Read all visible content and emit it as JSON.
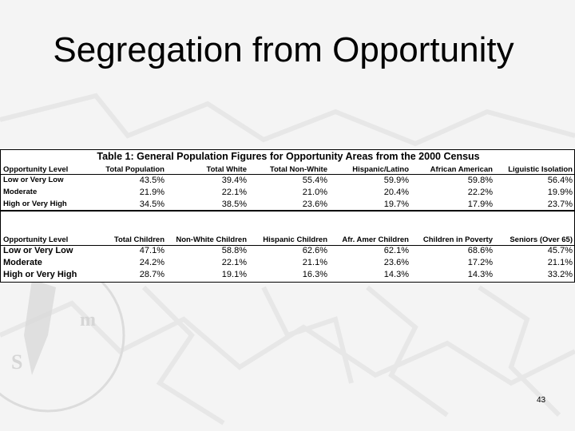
{
  "slide": {
    "title": "Segregation from Opportunity",
    "page_number": "43"
  },
  "table": {
    "caption": "Table 1: General Population Figures for Opportunity Areas from the 2000 Census",
    "section1": {
      "headers": [
        "Opportunity Level",
        "Total Population",
        "Total White",
        "Total Non-White",
        "Hispanic/Latino",
        "African American",
        "Liguistic Isolation"
      ],
      "rows": [
        {
          "label": "Low or Very Low",
          "values": [
            "43.5%",
            "39.4%",
            "55.4%",
            "59.9%",
            "59.8%",
            "56.4%"
          ]
        },
        {
          "label": "Moderate",
          "values": [
            "21.9%",
            "22.1%",
            "21.0%",
            "20.4%",
            "22.2%",
            "19.9%"
          ]
        },
        {
          "label": "High or Very High",
          "values": [
            "34.5%",
            "38.5%",
            "23.6%",
            "19.7%",
            "17.9%",
            "23.7%"
          ]
        }
      ]
    },
    "section2": {
      "headers": [
        "Opportunity Level",
        "Total Children",
        "Non-White Children",
        "Hispanic Children",
        "Afr. Amer Children",
        "Children in Poverty",
        "Seniors (Over 65)"
      ],
      "rows": [
        {
          "label": "Low or Very Low",
          "values": [
            "47.1%",
            "58.8%",
            "62.6%",
            "62.1%",
            "68.6%",
            "45.7%"
          ]
        },
        {
          "label": "Moderate",
          "values": [
            "24.2%",
            "22.1%",
            "21.1%",
            "23.6%",
            "17.2%",
            "21.1%"
          ]
        },
        {
          "label": "High or Very High",
          "values": [
            "28.7%",
            "19.1%",
            "16.3%",
            "14.3%",
            "14.3%",
            "33.2%"
          ]
        }
      ]
    }
  }
}
